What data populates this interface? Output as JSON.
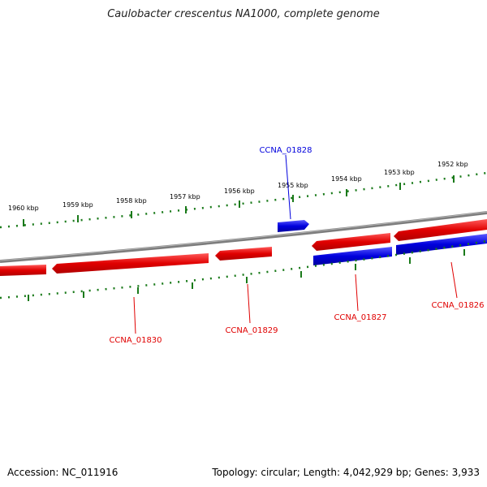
{
  "title": "Caulobacter crescentus NA1000, complete genome",
  "colors": {
    "ruler": "#1a7a1a",
    "backbone": "#888888",
    "reverse_gene": "#e00000",
    "forward_gene": "#0000dd"
  },
  "ruler_labels": [
    "1960 kbp",
    "1959 kbp",
    "1958 kbp",
    "1957 kbp",
    "1956 kbp",
    "1955 kbp",
    "1954 kbp",
    "1953 kbp",
    "1952 kbp"
  ],
  "gene_labels": [
    {
      "text": "CCNA_01828",
      "color": "#0000dd"
    },
    {
      "text": "CCNA_01830",
      "color": "#e00000"
    },
    {
      "text": "CCNA_01829",
      "color": "#e00000"
    },
    {
      "text": "CCNA_01827",
      "color": "#e00000"
    },
    {
      "text": "CCNA_01826",
      "color": "#e00000"
    }
  ],
  "footer": {
    "accession": "Accession: NC_011916",
    "summary": "Topology: circular; Length: 4,042,929 bp; Genes: 3,933"
  }
}
